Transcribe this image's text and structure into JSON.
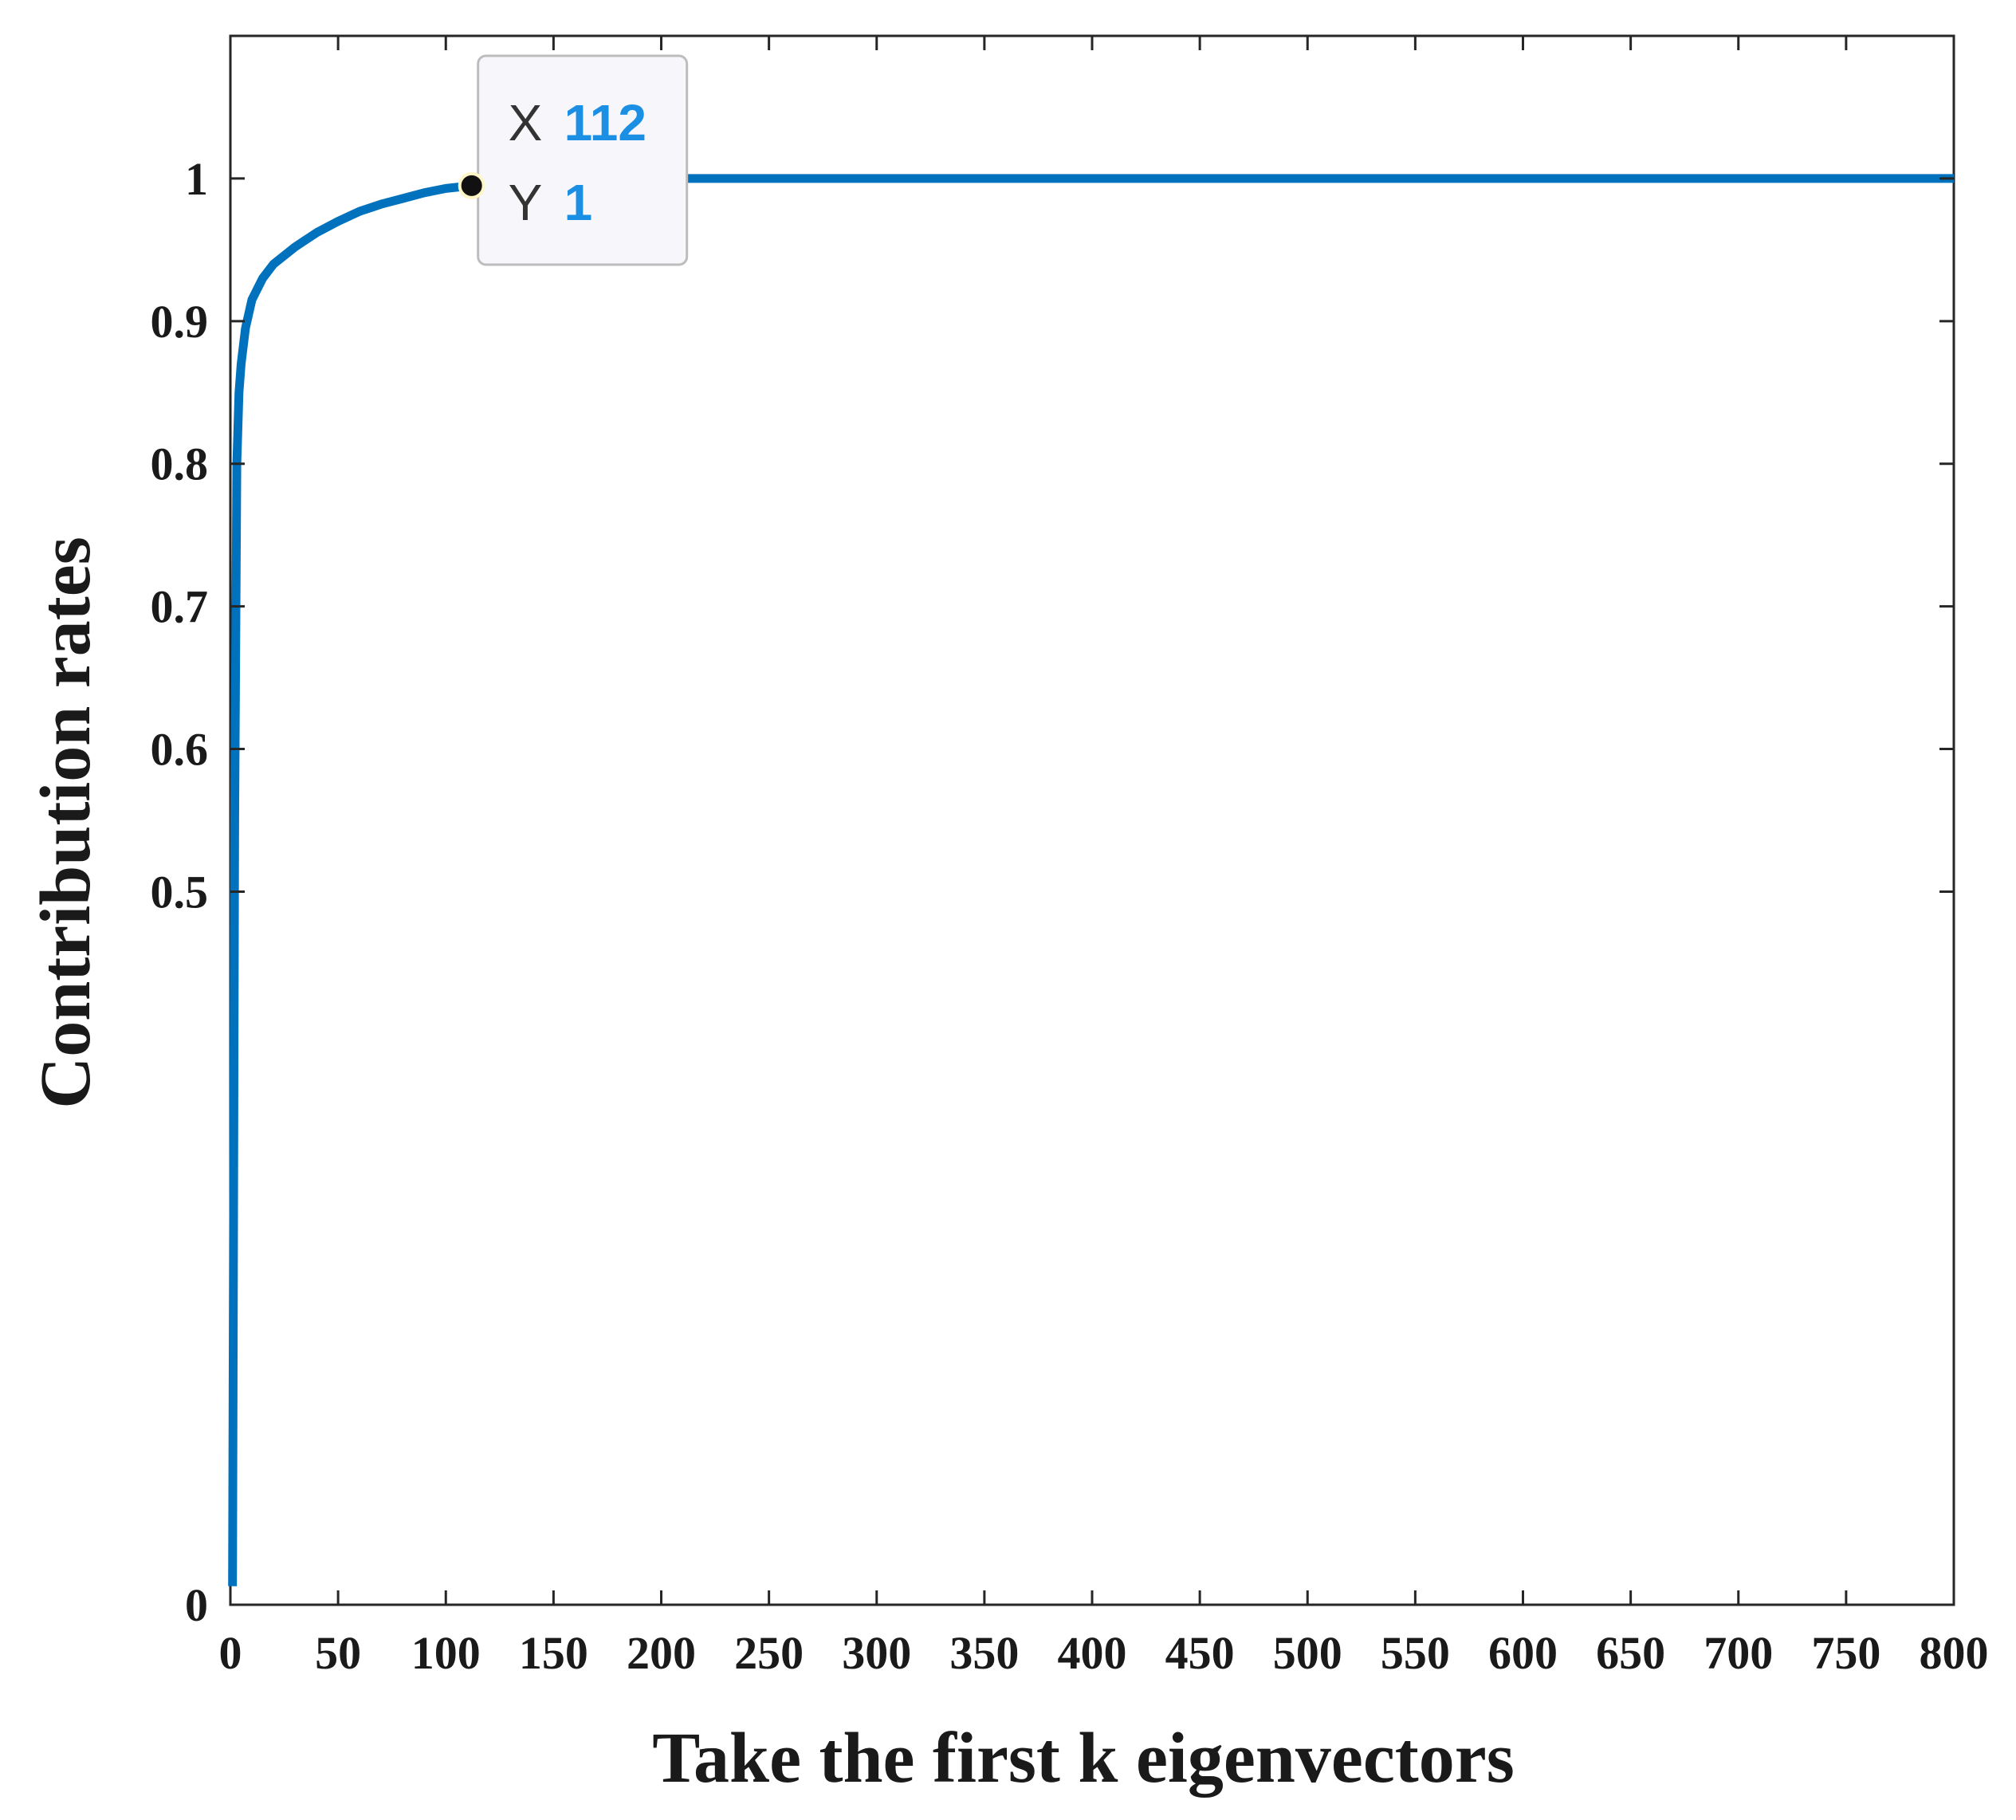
{
  "chart_data": {
    "type": "line",
    "xlabel": "Take the first k eigenvectors",
    "ylabel": "Contribution rates",
    "xlim": [
      0,
      800
    ],
    "ylim": [
      0,
      1.1
    ],
    "x_ticks": [
      "0",
      "50",
      "100",
      "150",
      "200",
      "250",
      "300",
      "350",
      "400",
      "450",
      "500",
      "550",
      "600",
      "650",
      "700",
      "750",
      "800"
    ],
    "y_ticks": [
      "0",
      "0.5",
      "0.6",
      "0.7",
      "0.8",
      "0.9",
      "1"
    ],
    "y_tick_values": [
      0,
      0.5,
      0.6,
      0.7,
      0.8,
      0.9,
      1.0
    ],
    "grid": false,
    "line_color": "#0072bd",
    "series": [
      {
        "x": [
          1,
          2,
          3,
          4,
          5,
          7,
          10,
          15,
          20,
          30,
          40,
          50,
          60,
          70,
          80,
          90,
          100,
          112,
          130,
          150,
          180,
          200,
          250,
          300,
          400,
          500,
          600,
          700,
          800
        ],
        "y": [
          0.013,
          0.55,
          0.8,
          0.85,
          0.87,
          0.895,
          0.915,
          0.93,
          0.94,
          0.952,
          0.962,
          0.97,
          0.977,
          0.982,
          0.986,
          0.99,
          0.993,
          0.995,
          0.997,
          0.998,
          0.999,
          1.0,
          1.0,
          1.0,
          1.0,
          1.0,
          1.0,
          1.0,
          1.0
        ]
      }
    ],
    "datatip": {
      "x_key": "X",
      "x_value": "112",
      "y_key": "Y",
      "y_value": "1",
      "point": [
        112,
        0.995
      ],
      "value_color": "#1a8fe3"
    }
  }
}
